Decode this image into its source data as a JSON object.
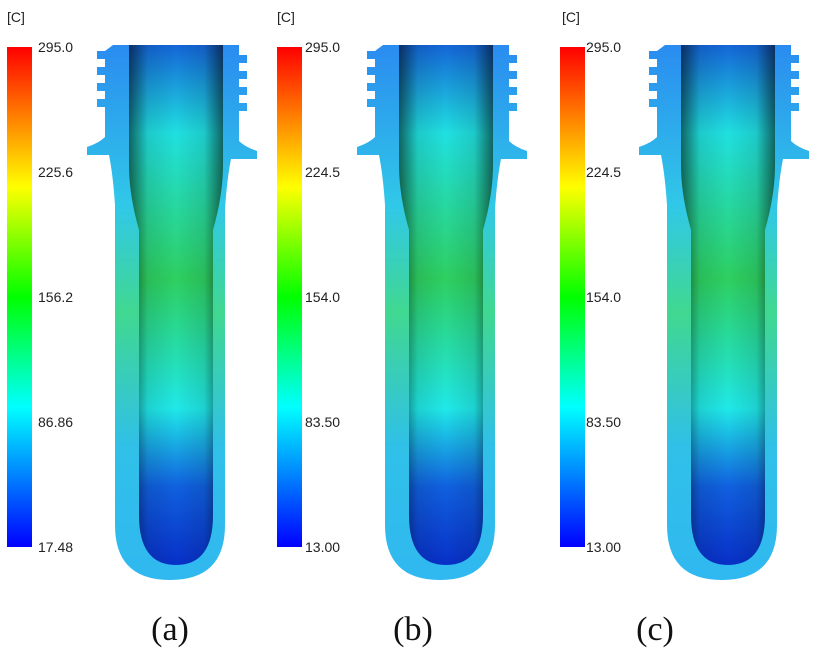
{
  "panels": [
    {
      "unit": "[C]",
      "ticks": [
        "295.0",
        "225.6",
        "156.2",
        "86.86",
        "17.48"
      ],
      "caption": "(a)"
    },
    {
      "unit": "[C]",
      "ticks": [
        "295.0",
        "224.5",
        "154.0",
        "83.50",
        "13.00"
      ],
      "caption": "(b)"
    },
    {
      "unit": "[C]",
      "ticks": [
        "295.0",
        "224.5",
        "154.0",
        "83.50",
        "13.00"
      ],
      "caption": "(c)"
    }
  ]
}
